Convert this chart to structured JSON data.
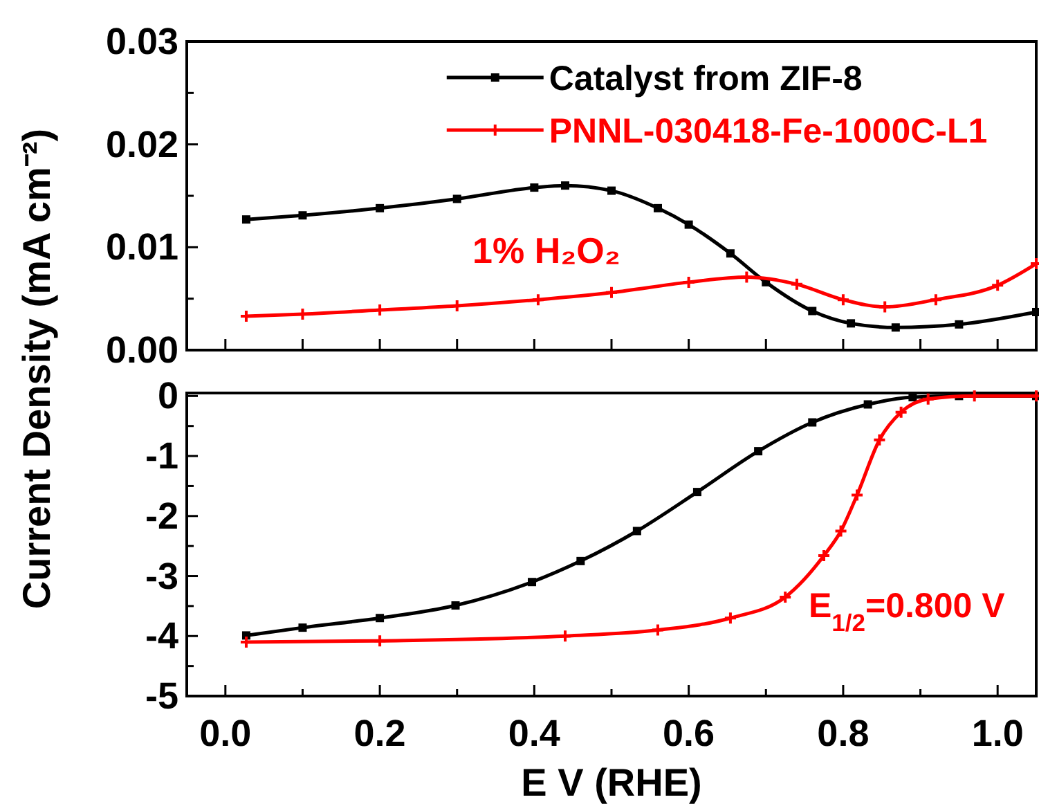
{
  "chart_data": [
    {
      "type": "line",
      "ylabel": "Current Density (mA cm⁻²)",
      "legend": "top",
      "tick_labels": "y",
      "xlim": [
        -0.05,
        1.05
      ],
      "xticks": [
        {
          "value": 0,
          "label": null
        },
        {
          "value": 0.1,
          "label": null
        },
        {
          "value": 0.2,
          "label": null
        },
        {
          "value": 0.3,
          "label": null
        },
        {
          "value": 0.4,
          "label": null
        },
        {
          "value": 0.5,
          "label": null
        },
        {
          "value": 0.6,
          "label": null
        },
        {
          "value": 0.7,
          "label": null
        },
        {
          "value": 0.8,
          "label": null
        },
        {
          "value": 0.9,
          "label": null
        },
        {
          "value": 1.0,
          "label": null
        }
      ],
      "ylim": [
        0,
        0.03
      ],
      "yticks": [
        {
          "value": 0,
          "label": "0.00"
        },
        {
          "value": 0.005,
          "label": null
        },
        {
          "value": 0.01,
          "label": "0.01"
        },
        {
          "value": 0.015,
          "label": null
        },
        {
          "value": 0.02,
          "label": "0.02"
        },
        {
          "value": 0.025,
          "label": null
        },
        {
          "value": 0.03,
          "label": "0.03"
        }
      ],
      "annotations": [
        "1% H₂O₂"
      ],
      "series": [
        {
          "name": "Catalyst from ZIF-8",
          "color": "#000000",
          "marker": "square",
          "x": [
            0.027,
            0.1,
            0.2,
            0.3,
            0.4,
            0.44,
            0.5,
            0.56,
            0.6,
            0.654,
            0.7,
            0.76,
            0.81,
            0.868,
            0.95,
            1.05
          ],
          "values": [
            0.0127,
            0.0131,
            0.0138,
            0.0147,
            0.0158,
            0.016,
            0.0155,
            0.0138,
            0.0122,
            0.0094,
            0.0066,
            0.0038,
            0.0026,
            0.0022,
            0.0025,
            0.0037
          ]
        },
        {
          "name": "PNNL-030418-Fe-1000C-L1",
          "color": "#ff0000",
          "marker": "cross",
          "x": [
            0.027,
            0.1,
            0.2,
            0.3,
            0.405,
            0.5,
            0.6,
            0.675,
            0.74,
            0.8,
            0.854,
            0.92,
            1.0,
            1.05
          ],
          "values": [
            0.0033,
            0.0035,
            0.0039,
            0.0043,
            0.0049,
            0.0056,
            0.0066,
            0.0071,
            0.0064,
            0.0049,
            0.0042,
            0.0049,
            0.0063,
            0.0084
          ]
        }
      ]
    },
    {
      "type": "line",
      "xlabel": "E V (RHE)",
      "xlim": [
        -0.05,
        1.05
      ],
      "xticks": [
        {
          "value": 0,
          "label": "0.0"
        },
        {
          "value": 0.1,
          "label": null
        },
        {
          "value": 0.2,
          "label": "0.2"
        },
        {
          "value": 0.3,
          "label": null
        },
        {
          "value": 0.4,
          "label": "0.4"
        },
        {
          "value": 0.5,
          "label": null
        },
        {
          "value": 0.6,
          "label": "0.6"
        },
        {
          "value": 0.7,
          "label": null
        },
        {
          "value": 0.8,
          "label": "0.8"
        },
        {
          "value": 0.9,
          "label": null
        },
        {
          "value": 1.0,
          "label": "1.0"
        }
      ],
      "ylim": [
        -5,
        0.05
      ],
      "yticks": [
        -5,
        {
          "value": -4.5,
          "label": null
        },
        -4,
        {
          "value": -3.5,
          "label": null
        },
        -3,
        {
          "value": -2.5,
          "label": null
        },
        -2,
        {
          "value": -1.5,
          "label": null
        },
        -1,
        {
          "value": -0.5,
          "label": null
        },
        0
      ],
      "annotations": [
        "E$_{1/2}$=0.800 V"
      ],
      "series": [
        {
          "color": "#000000",
          "marker": "square",
          "x": [
            0.027,
            0.1,
            0.2,
            0.298,
            0.397,
            0.46,
            0.533,
            0.611,
            0.69,
            0.76,
            0.832,
            0.89,
            0.95,
            1.05
          ],
          "values": [
            -3.99,
            -3.86,
            -3.7,
            -3.49,
            -3.1,
            -2.75,
            -2.25,
            -1.6,
            -0.92,
            -0.44,
            -0.14,
            -0.02,
            0,
            0
          ]
        },
        {
          "color": "#ff0000",
          "marker": "cross",
          "x": [
            0.027,
            0.2,
            0.44,
            0.56,
            0.654,
            0.725,
            0.775,
            0.797,
            0.818,
            0.847,
            0.875,
            0.91,
            0.97,
            1.05
          ],
          "values": [
            -4.1,
            -4.08,
            -4.0,
            -3.9,
            -3.7,
            -3.35,
            -2.66,
            -2.25,
            -1.65,
            -0.73,
            -0.27,
            -0.05,
            0,
            0
          ]
        }
      ]
    }
  ]
}
